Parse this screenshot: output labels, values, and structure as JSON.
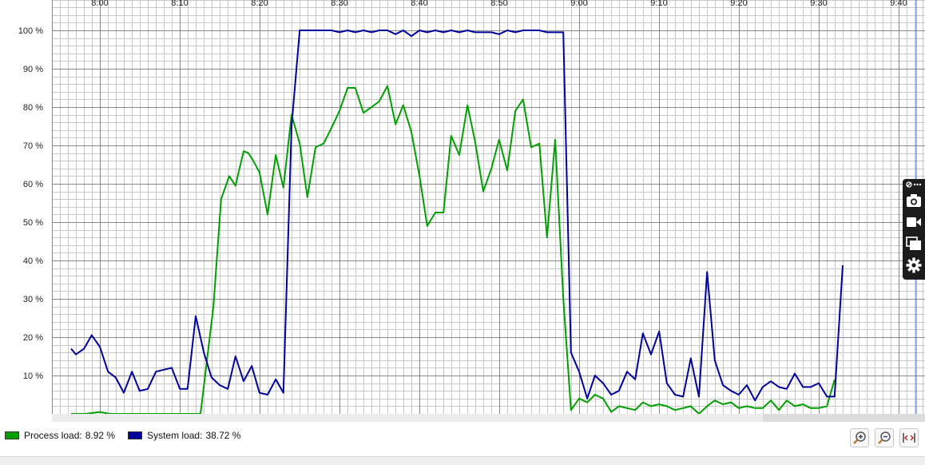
{
  "chart_data": {
    "type": "line",
    "title": "",
    "xlabel": "",
    "ylabel": "",
    "x_ticks": [
      "8:00",
      "8:10",
      "8:20",
      "8:30",
      "8:40",
      "8:50",
      "9:00",
      "9:10",
      "9:20",
      "9:30",
      "9:40"
    ],
    "y_ticks": [
      "10 %",
      "20 %",
      "30 %",
      "40 %",
      "50 %",
      "60 %",
      "70 %",
      "80 %",
      "90 %",
      "100 %"
    ],
    "ylim": [
      0,
      100
    ],
    "x_range_minutes": [
      7.88,
      9.72
    ],
    "grid": true,
    "legend_position": "bottom-left",
    "series": [
      {
        "name": "Process load:",
        "current_value": "8.92 %",
        "color": "#00a000",
        "points": [
          [
            7.94,
            0
          ],
          [
            7.97,
            0
          ],
          [
            8.0,
            0.5
          ],
          [
            8.02,
            0
          ],
          [
            8.05,
            0
          ],
          [
            8.08,
            0
          ],
          [
            8.1,
            0
          ],
          [
            8.13,
            0
          ],
          [
            8.15,
            0
          ],
          [
            8.18,
            0
          ],
          [
            8.2,
            0
          ],
          [
            8.21,
            0
          ],
          [
            8.237,
            28
          ],
          [
            8.253,
            56
          ],
          [
            8.27,
            62
          ],
          [
            8.283,
            59.5
          ],
          [
            8.3,
            68.5
          ],
          [
            8.31,
            68
          ],
          [
            8.32,
            66
          ],
          [
            8.333,
            63
          ],
          [
            8.35,
            52
          ],
          [
            8.367,
            67.5
          ],
          [
            8.383,
            59
          ],
          [
            8.4,
            78
          ],
          [
            8.417,
            70.5
          ],
          [
            8.433,
            56.5
          ],
          [
            8.45,
            69.5
          ],
          [
            8.467,
            70.5
          ],
          [
            8.483,
            74.5
          ],
          [
            8.5,
            79
          ],
          [
            8.517,
            85
          ],
          [
            8.533,
            85
          ],
          [
            8.55,
            78.5
          ],
          [
            8.567,
            80
          ],
          [
            8.583,
            81.5
          ],
          [
            8.6,
            85.5
          ],
          [
            8.617,
            75.5
          ],
          [
            8.633,
            80.5
          ],
          [
            8.65,
            73.5
          ],
          [
            8.667,
            62
          ],
          [
            8.683,
            49
          ],
          [
            8.7,
            52.5
          ],
          [
            8.717,
            52.5
          ],
          [
            8.733,
            72.5
          ],
          [
            8.75,
            67.5
          ],
          [
            8.767,
            80.5
          ],
          [
            8.783,
            71
          ],
          [
            8.8,
            58
          ],
          [
            8.817,
            64
          ],
          [
            8.833,
            71.5
          ],
          [
            8.85,
            63.5
          ],
          [
            8.867,
            79
          ],
          [
            8.883,
            82
          ],
          [
            8.9,
            69.5
          ],
          [
            8.917,
            70.5
          ],
          [
            8.933,
            46
          ],
          [
            8.95,
            71.5
          ],
          [
            8.967,
            30
          ],
          [
            8.983,
            1
          ],
          [
            9.0,
            4
          ],
          [
            9.017,
            3
          ],
          [
            9.033,
            5
          ],
          [
            9.05,
            4
          ],
          [
            9.067,
            0.5
          ],
          [
            9.083,
            2
          ],
          [
            9.1,
            1.5
          ],
          [
            9.117,
            1
          ],
          [
            9.133,
            3
          ],
          [
            9.15,
            2
          ],
          [
            9.167,
            2.5
          ],
          [
            9.183,
            2
          ],
          [
            9.2,
            1
          ],
          [
            9.217,
            1.5
          ],
          [
            9.233,
            2
          ],
          [
            9.25,
            0
          ],
          [
            9.267,
            2
          ],
          [
            9.283,
            3.5
          ],
          [
            9.3,
            2.5
          ],
          [
            9.317,
            3
          ],
          [
            9.333,
            1.5
          ],
          [
            9.35,
            2
          ],
          [
            9.367,
            1.5
          ],
          [
            9.383,
            1.5
          ],
          [
            9.4,
            3.5
          ],
          [
            9.417,
            1
          ],
          [
            9.433,
            3.5
          ],
          [
            9.45,
            2
          ],
          [
            9.467,
            2.5
          ],
          [
            9.483,
            1.5
          ],
          [
            9.5,
            1.5
          ],
          [
            9.517,
            2
          ],
          [
            9.533,
            8.92
          ]
        ]
      },
      {
        "name": "System load:",
        "current_value": "38.72 %",
        "color": "#00009c",
        "points": [
          [
            7.94,
            17
          ],
          [
            7.95,
            15.5
          ],
          [
            7.967,
            17
          ],
          [
            7.983,
            20.5
          ],
          [
            8.0,
            17.5
          ],
          [
            8.017,
            11
          ],
          [
            8.033,
            9.5
          ],
          [
            8.05,
            5.5
          ],
          [
            8.067,
            11
          ],
          [
            8.083,
            6
          ],
          [
            8.1,
            6.5
          ],
          [
            8.117,
            11
          ],
          [
            8.133,
            11.5
          ],
          [
            8.15,
            12
          ],
          [
            8.167,
            6.5
          ],
          [
            8.183,
            6.5
          ],
          [
            8.2,
            25.5
          ],
          [
            8.217,
            16
          ],
          [
            8.233,
            9.5
          ],
          [
            8.25,
            7.5
          ],
          [
            8.267,
            6.5
          ],
          [
            8.283,
            15
          ],
          [
            8.3,
            8.5
          ],
          [
            8.317,
            12.5
          ],
          [
            8.333,
            5.5
          ],
          [
            8.35,
            5
          ],
          [
            8.367,
            9
          ],
          [
            8.383,
            5.5
          ],
          [
            8.4,
            75
          ],
          [
            8.417,
            100
          ],
          [
            8.433,
            100
          ],
          [
            8.45,
            100
          ],
          [
            8.467,
            100
          ],
          [
            8.483,
            100
          ],
          [
            8.5,
            99.5
          ],
          [
            8.517,
            100
          ],
          [
            8.533,
            99.5
          ],
          [
            8.55,
            100
          ],
          [
            8.567,
            99.5
          ],
          [
            8.583,
            100
          ],
          [
            8.6,
            100
          ],
          [
            8.617,
            99
          ],
          [
            8.633,
            100
          ],
          [
            8.65,
            98.5
          ],
          [
            8.667,
            100
          ],
          [
            8.683,
            99.5
          ],
          [
            8.7,
            100
          ],
          [
            8.717,
            99.5
          ],
          [
            8.733,
            100
          ],
          [
            8.75,
            99.5
          ],
          [
            8.767,
            100
          ],
          [
            8.783,
            99.5
          ],
          [
            8.8,
            99.5
          ],
          [
            8.817,
            99.5
          ],
          [
            8.833,
            99
          ],
          [
            8.85,
            100
          ],
          [
            8.867,
            99.5
          ],
          [
            8.883,
            100
          ],
          [
            8.9,
            100
          ],
          [
            8.917,
            100
          ],
          [
            8.933,
            99.5
          ],
          [
            8.95,
            99.5
          ],
          [
            8.967,
            99.5
          ],
          [
            8.983,
            16
          ],
          [
            9.0,
            11
          ],
          [
            9.017,
            4
          ],
          [
            9.033,
            10
          ],
          [
            9.05,
            8
          ],
          [
            9.067,
            5
          ],
          [
            9.083,
            6
          ],
          [
            9.1,
            11
          ],
          [
            9.117,
            9
          ],
          [
            9.133,
            21
          ],
          [
            9.15,
            15.5
          ],
          [
            9.167,
            21.5
          ],
          [
            9.183,
            8
          ],
          [
            9.2,
            5
          ],
          [
            9.217,
            4.5
          ],
          [
            9.233,
            14.5
          ],
          [
            9.25,
            4.5
          ],
          [
            9.267,
            37
          ],
          [
            9.283,
            14
          ],
          [
            9.3,
            7.5
          ],
          [
            9.317,
            6
          ],
          [
            9.333,
            5
          ],
          [
            9.35,
            7.5
          ],
          [
            9.367,
            3.5
          ],
          [
            9.383,
            7
          ],
          [
            9.4,
            8.5
          ],
          [
            9.417,
            7
          ],
          [
            9.433,
            6.5
          ],
          [
            9.45,
            10.5
          ],
          [
            9.467,
            7
          ],
          [
            9.483,
            7
          ],
          [
            9.5,
            8
          ],
          [
            9.517,
            4.5
          ],
          [
            9.533,
            4.5
          ],
          [
            9.55,
            38.72
          ]
        ]
      }
    ]
  },
  "colors": {
    "grid_minor": "#c8c8c8",
    "grid_major": "#8a8a8a",
    "cursor_line": "#3b62ff",
    "background": "#ffffff"
  },
  "controls": {
    "zoom_in": "zoom-in-icon",
    "zoom_out": "zoom-out-icon",
    "fit": "fit-width-icon"
  },
  "toolbar": {
    "items": [
      "link-icon",
      "more-icon",
      "camera-icon",
      "video-icon",
      "window-icon",
      "gear-icon"
    ]
  }
}
